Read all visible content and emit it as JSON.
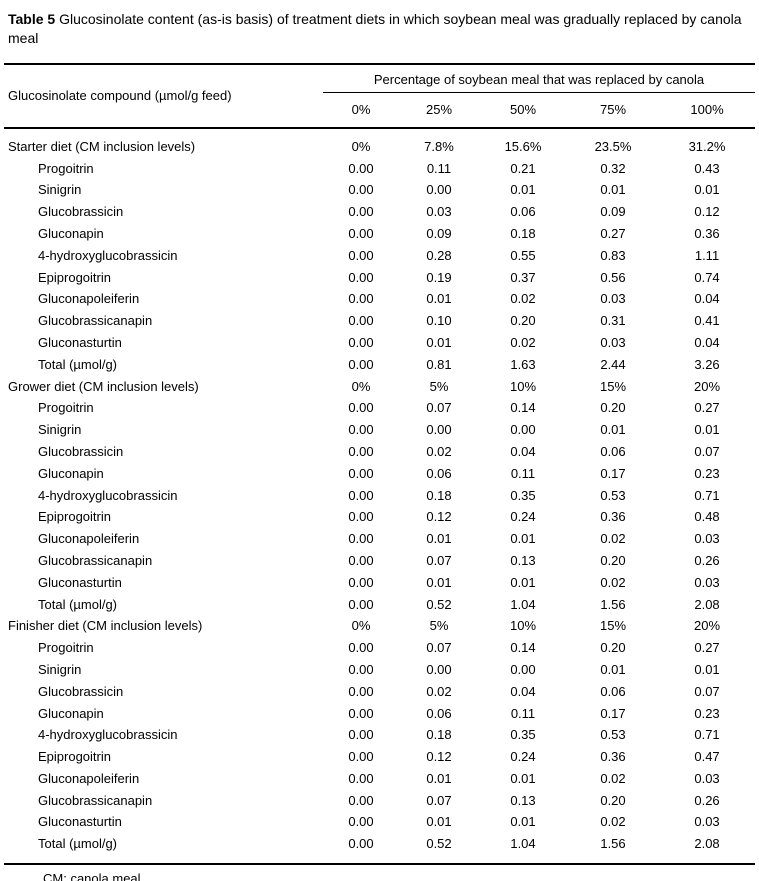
{
  "title": {
    "label": "Table 5",
    "text": "Glucosinolate content (as-is basis) of treatment diets in which soybean meal was gradually replaced by canola meal"
  },
  "table": {
    "col_header_left": "Glucosinolate compound (µmol/g feed)",
    "span_header": "Percentage of soybean meal that was replaced by canola",
    "columns": [
      "0%",
      "25%",
      "50%",
      "75%",
      "100%"
    ],
    "sections": [
      {
        "header": {
          "label": "Starter diet (CM inclusion levels)",
          "values": [
            "0%",
            "7.8%",
            "15.6%",
            "23.5%",
            "31.2%"
          ]
        },
        "rows": [
          {
            "label": "Progoitrin",
            "values": [
              "0.00",
              "0.11",
              "0.21",
              "0.32",
              "0.43"
            ]
          },
          {
            "label": "Sinigrin",
            "values": [
              "0.00",
              "0.00",
              "0.01",
              "0.01",
              "0.01"
            ]
          },
          {
            "label": "Glucobrassicin",
            "values": [
              "0.00",
              "0.03",
              "0.06",
              "0.09",
              "0.12"
            ]
          },
          {
            "label": "Gluconapin",
            "values": [
              "0.00",
              "0.09",
              "0.18",
              "0.27",
              "0.36"
            ]
          },
          {
            "label": "4-hydroxyglucobrassicin",
            "values": [
              "0.00",
              "0.28",
              "0.55",
              "0.83",
              "1.11"
            ]
          },
          {
            "label": "Epiprogoitrin",
            "values": [
              "0.00",
              "0.19",
              "0.37",
              "0.56",
              "0.74"
            ]
          },
          {
            "label": "Gluconapoleiferin",
            "values": [
              "0.00",
              "0.01",
              "0.02",
              "0.03",
              "0.04"
            ]
          },
          {
            "label": "Glucobrassicanapin",
            "values": [
              "0.00",
              "0.10",
              "0.20",
              "0.31",
              "0.41"
            ]
          },
          {
            "label": "Gluconasturtin",
            "values": [
              "0.00",
              "0.01",
              "0.02",
              "0.03",
              "0.04"
            ]
          },
          {
            "label": "Total (µmol/g)",
            "values": [
              "0.00",
              "0.81",
              "1.63",
              "2.44",
              "3.26"
            ]
          }
        ]
      },
      {
        "header": {
          "label": "Grower diet (CM inclusion levels)",
          "values": [
            "0%",
            "5%",
            "10%",
            "15%",
            "20%"
          ]
        },
        "rows": [
          {
            "label": "Progoitrin",
            "values": [
              "0.00",
              "0.07",
              "0.14",
              "0.20",
              "0.27"
            ]
          },
          {
            "label": "Sinigrin",
            "values": [
              "0.00",
              "0.00",
              "0.00",
              "0.01",
              "0.01"
            ]
          },
          {
            "label": "Glucobrassicin",
            "values": [
              "0.00",
              "0.02",
              "0.04",
              "0.06",
              "0.07"
            ]
          },
          {
            "label": "Gluconapin",
            "values": [
              "0.00",
              "0.06",
              "0.11",
              "0.17",
              "0.23"
            ]
          },
          {
            "label": "4-hydroxyglucobrassicin",
            "values": [
              "0.00",
              "0.18",
              "0.35",
              "0.53",
              "0.71"
            ]
          },
          {
            "label": "Epiprogoitrin",
            "values": [
              "0.00",
              "0.12",
              "0.24",
              "0.36",
              "0.48"
            ]
          },
          {
            "label": "Gluconapoleiferin",
            "values": [
              "0.00",
              "0.01",
              "0.01",
              "0.02",
              "0.03"
            ]
          },
          {
            "label": "Glucobrassicanapin",
            "values": [
              "0.00",
              "0.07",
              "0.13",
              "0.20",
              "0.26"
            ]
          },
          {
            "label": "Gluconasturtin",
            "values": [
              "0.00",
              "0.01",
              "0.01",
              "0.02",
              "0.03"
            ]
          },
          {
            "label": "Total (µmol/g)",
            "values": [
              "0.00",
              "0.52",
              "1.04",
              "1.56",
              "2.08"
            ]
          }
        ]
      },
      {
        "header": {
          "label": "Finisher diet (CM inclusion levels)",
          "values": [
            "0%",
            "5%",
            "10%",
            "15%",
            "20%"
          ]
        },
        "rows": [
          {
            "label": "Progoitrin",
            "values": [
              "0.00",
              "0.07",
              "0.14",
              "0.20",
              "0.27"
            ]
          },
          {
            "label": "Sinigrin",
            "values": [
              "0.00",
              "0.00",
              "0.00",
              "0.01",
              "0.01"
            ]
          },
          {
            "label": "Glucobrassicin",
            "values": [
              "0.00",
              "0.02",
              "0.04",
              "0.06",
              "0.07"
            ]
          },
          {
            "label": "Gluconapin",
            "values": [
              "0.00",
              "0.06",
              "0.11",
              "0.17",
              "0.23"
            ]
          },
          {
            "label": "4-hydroxyglucobrassicin",
            "values": [
              "0.00",
              "0.18",
              "0.35",
              "0.53",
              "0.71"
            ]
          },
          {
            "label": "Epiprogoitrin",
            "values": [
              "0.00",
              "0.12",
              "0.24",
              "0.36",
              "0.47"
            ]
          },
          {
            "label": "Gluconapoleiferin",
            "values": [
              "0.00",
              "0.01",
              "0.01",
              "0.02",
              "0.03"
            ]
          },
          {
            "label": "Glucobrassicanapin",
            "values": [
              "0.00",
              "0.07",
              "0.13",
              "0.20",
              "0.26"
            ]
          },
          {
            "label": "Gluconasturtin",
            "values": [
              "0.00",
              "0.01",
              "0.01",
              "0.02",
              "0.03"
            ]
          },
          {
            "label": "Total (µmol/g)",
            "values": [
              "0.00",
              "0.52",
              "1.04",
              "1.56",
              "2.08"
            ]
          }
        ]
      }
    ]
  },
  "footnote": "CM: canola meal",
  "colors": {
    "text": "#000000",
    "background": "#ffffff",
    "rule": "#000000"
  }
}
